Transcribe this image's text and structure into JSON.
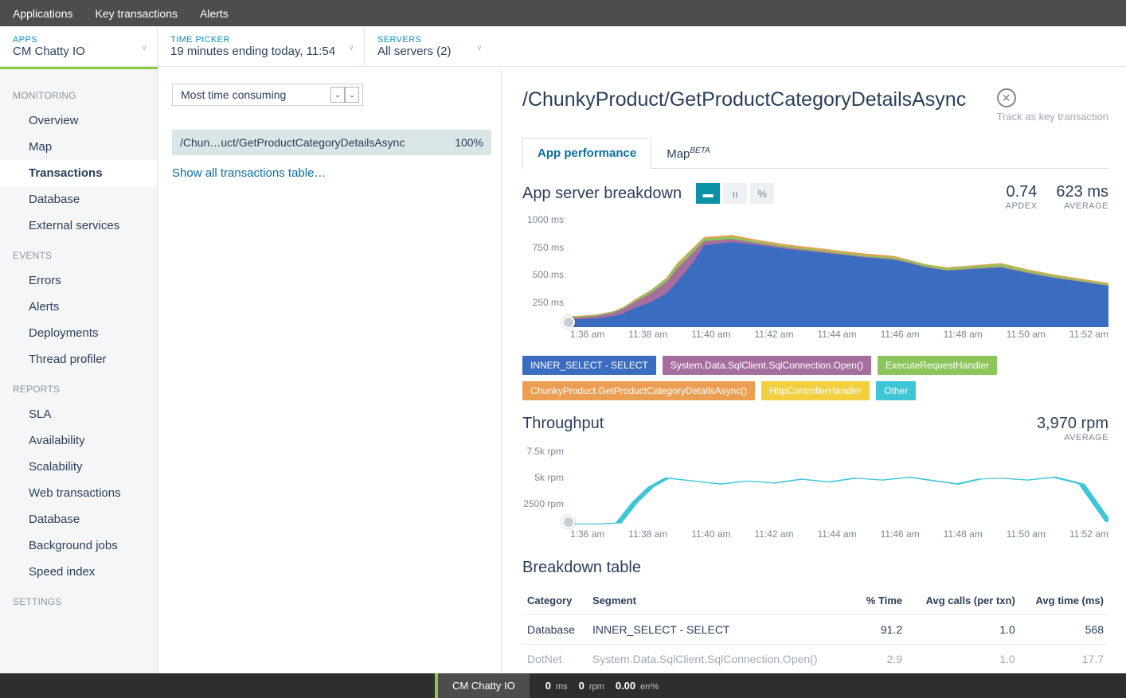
{
  "top_nav": {
    "items": [
      "Applications",
      "Key transactions",
      "Alerts"
    ]
  },
  "filters": {
    "apps": {
      "label": "APPS",
      "value": "CM Chatty IO"
    },
    "time": {
      "label": "TIME PICKER",
      "value": "19 minutes ending today, 11:54"
    },
    "servers": {
      "label": "SERVERS",
      "value": "All servers (2)"
    }
  },
  "sidebar": {
    "groups": [
      {
        "head": "MONITORING",
        "items": [
          "Overview",
          "Map",
          "Transactions",
          "Database",
          "External services"
        ],
        "active": "Transactions"
      },
      {
        "head": "EVENTS",
        "items": [
          "Errors",
          "Alerts",
          "Deployments",
          "Thread profiler"
        ]
      },
      {
        "head": "REPORTS",
        "items": [
          "SLA",
          "Availability",
          "Scalability",
          "Web transactions",
          "Database",
          "Background jobs",
          "Speed index"
        ]
      },
      {
        "head": "SETTINGS",
        "items": []
      }
    ]
  },
  "center": {
    "dropdown": "Most time consuming",
    "txn": {
      "name": "/Chun…uct/GetProductCategoryDetailsAsync",
      "pct": "100%"
    },
    "show_all": "Show all transactions table…"
  },
  "detail": {
    "title": "/ChunkyProduct/GetProductCategoryDetailsAsync",
    "track": "Track as key transaction",
    "tabs": [
      {
        "label": "App performance",
        "active": true
      },
      {
        "label": "Map",
        "sup": "BETA"
      }
    ],
    "breakdown": {
      "title": "App server breakdown",
      "metrics": [
        {
          "val": "0.74",
          "lbl": "APDEX"
        },
        {
          "val": "623 ms",
          "lbl": "AVERAGE"
        }
      ],
      "chart": {
        "ylabels": [
          "1000 ms",
          "750 ms",
          "500 ms",
          "250 ms"
        ],
        "xlabels": [
          "1:36 am",
          "11:38 am",
          "11:40 am",
          "11:42 am",
          "11:44 am",
          "11:46 am",
          "11:48 am",
          "11:50 am",
          "11:52 am"
        ],
        "ymax": 1050,
        "x_points": [
          0,
          5,
          8,
          10,
          12,
          15,
          18,
          20,
          23,
          25,
          30,
          35,
          40,
          45,
          50,
          55,
          60,
          63,
          66,
          70,
          75,
          80,
          85,
          90,
          95,
          100
        ],
        "series": [
          {
            "color": "#ec9e52",
            "vals": [
              100,
              120,
              150,
              190,
              260,
              350,
              470,
              610,
              760,
              860,
              880,
              830,
              790,
              760,
              730,
              700,
              680,
              640,
              600,
              570,
              590,
              610,
              550,
              500,
              460,
              420
            ]
          },
          {
            "color": "#8dc55d",
            "vals": [
              95,
              115,
              145,
              185,
              250,
              345,
              460,
              595,
              745,
              845,
              865,
              815,
              775,
              745,
              715,
              685,
              665,
              635,
              595,
              562,
              582,
              600,
              540,
              490,
              450,
              410
            ]
          },
          {
            "color": "#a66e9e",
            "vals": [
              85,
              105,
              135,
              175,
              235,
              320,
              430,
              560,
              715,
              820,
              840,
              800,
              760,
              730,
              700,
              670,
              650,
              615,
              575,
              542,
              560,
              575,
              520,
              472,
              435,
              395
            ]
          },
          {
            "color": "#3a6cbf",
            "vals": [
              70,
              82,
              102,
              130,
              180,
              235,
              320,
              430,
              620,
              780,
              810,
              780,
              745,
              718,
              690,
              662,
              642,
              608,
              568,
              536,
              552,
              565,
              512,
              466,
              430,
              390
            ]
          }
        ]
      },
      "legend": [
        {
          "label": "INNER_SELECT - SELECT",
          "color": "#3a6cbf"
        },
        {
          "label": "System.Data.SqlClient.SqlConnection.Open()",
          "color": "#a66e9e"
        },
        {
          "label": "ExecuteRequestHandler",
          "color": "#8dc55d"
        },
        {
          "label": "ChunkyProduct.GetProductCategoryDetailsAsync()",
          "color": "#ec9e52"
        },
        {
          "label": "HttpControllerHandler",
          "color": "#f2cf3f"
        },
        {
          "label": "Other",
          "color": "#3fc6d6"
        }
      ]
    },
    "throughput": {
      "title": "Throughput",
      "metrics": [
        {
          "val": "3,970 rpm",
          "lbl": "AVERAGE"
        }
      ],
      "chart": {
        "ylabels": [
          "7.5k rpm",
          "5k rpm",
          "2500 rpm"
        ],
        "xlabels": [
          "1:36 am",
          "11:38 am",
          "11:40 am",
          "11:42 am",
          "11:44 am",
          "11:46 am",
          "11:48 am",
          "11:50 am",
          "11:52 am"
        ],
        "ymax": 8000,
        "color": "#3fc6d6",
        "x_points": [
          0,
          5,
          9,
          12,
          15,
          18,
          23,
          28,
          33,
          38,
          43,
          48,
          53,
          58,
          63,
          68,
          72,
          76,
          80,
          85,
          90,
          95,
          100
        ],
        "vals": [
          300,
          300,
          400,
          2500,
          4100,
          5000,
          4700,
          4400,
          4700,
          4500,
          4900,
          4600,
          5000,
          4800,
          5100,
          4700,
          4400,
          4900,
          5000,
          4800,
          5100,
          4400,
          500
        ]
      }
    },
    "table": {
      "title": "Breakdown table",
      "headers": [
        "Category",
        "Segment",
        "% Time",
        "Avg calls (per txn)",
        "Avg time (ms)"
      ],
      "rows": [
        {
          "cat": "Database",
          "seg": "INNER_SELECT - SELECT",
          "pct": "91.2",
          "calls": "1.0",
          "time": "568"
        },
        {
          "cat": "DotNet",
          "seg": "System.Data.SqlClient.SqlConnection.Open()",
          "pct": "2.9",
          "calls": "1.0",
          "time": "17.7",
          "faded": true
        }
      ]
    }
  },
  "status": {
    "app": "CM Chatty IO",
    "metrics": [
      {
        "n": "0",
        "u": "ms"
      },
      {
        "n": "0",
        "u": "rpm"
      },
      {
        "n": "0.00",
        "u": "err%"
      }
    ]
  }
}
